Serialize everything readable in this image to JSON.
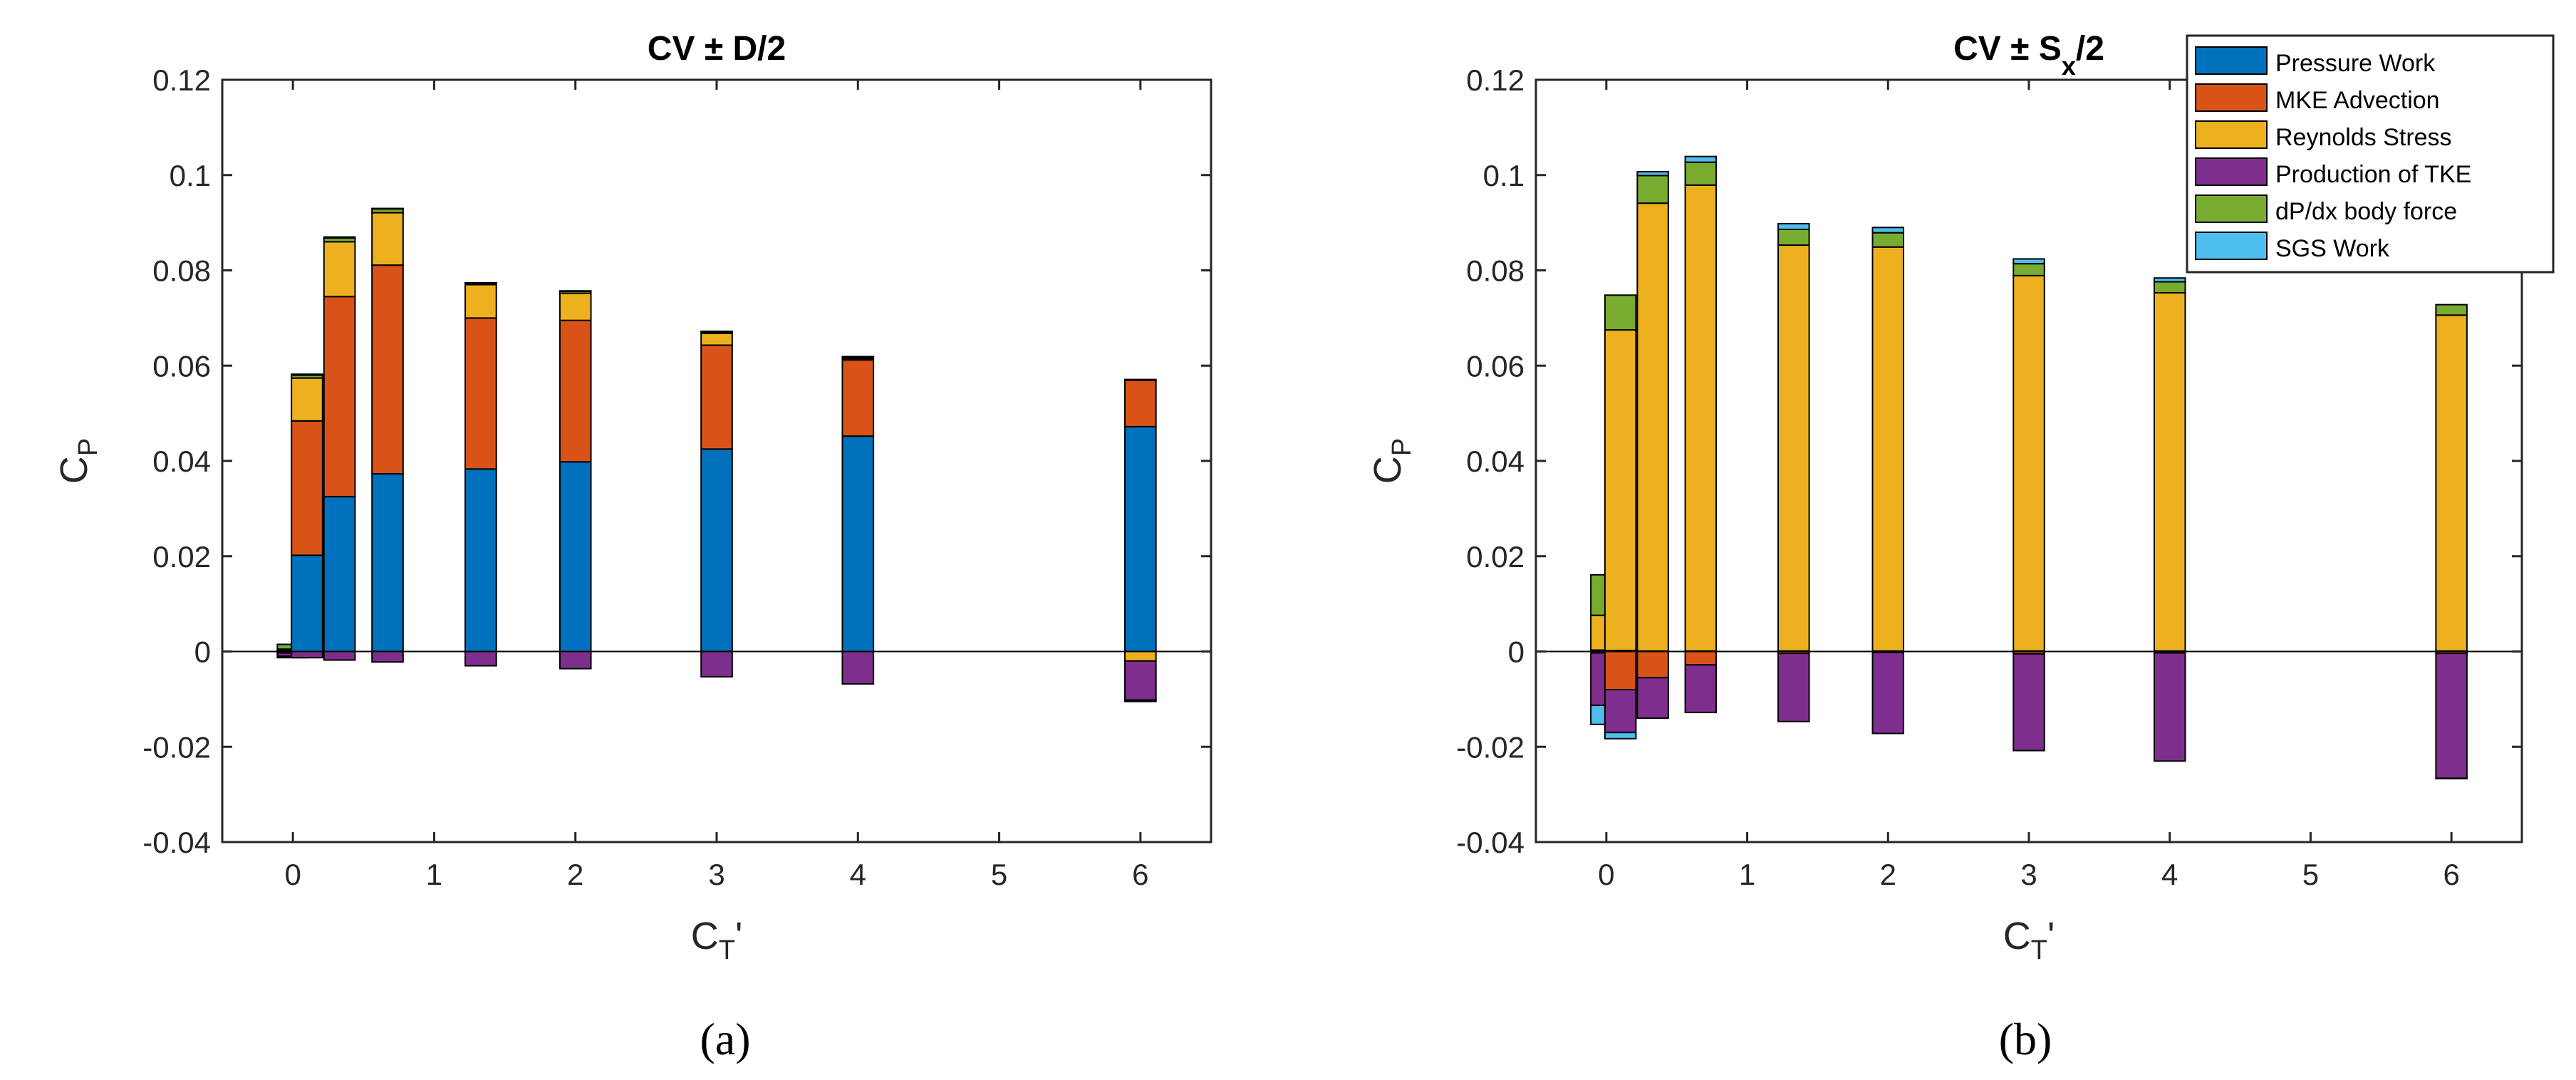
{
  "figure": {
    "captions": [
      "(a)",
      "(b)"
    ]
  },
  "chart_data": [
    {
      "type": "bar",
      "stacking": "stacked",
      "panel": "a",
      "title": "CV ± D/2",
      "title_parts": {
        "prefix": "CV",
        "pm": "±",
        "body": "D/2",
        "sub": ""
      },
      "xlabel": "C_T'",
      "xlabel_parts": {
        "main": "C",
        "sub": "T",
        "suffix": "'"
      },
      "ylabel": "C_P",
      "ylabel_parts": {
        "main": "C",
        "sub": "P"
      },
      "xlim": [
        -0.5,
        6.5
      ],
      "ylim": [
        -0.04,
        0.12
      ],
      "xticks": [
        0,
        1,
        2,
        3,
        4,
        5,
        6
      ],
      "yticks": [
        -0.04,
        -0.02,
        0,
        0.02,
        0.04,
        0.06,
        0.08,
        0.1,
        0.12
      ],
      "ytick_labels": [
        "-0.04",
        "-0.02",
        "0",
        "0.02",
        "0.04",
        "0.06",
        "0.08",
        "0.1",
        "0.12"
      ],
      "zero_line": true,
      "grid": false,
      "legend": null,
      "categories": [
        "0",
        "0.1",
        "0.33",
        "0.67",
        "1.33",
        "2",
        "3",
        "4",
        "6"
      ],
      "x": [
        0,
        0.1,
        0.33,
        0.67,
        1.33,
        2,
        3,
        4,
        6
      ],
      "bar_width": 0.22,
      "series": [
        {
          "name": "Pressure Work",
          "values": [
            -0.0003,
            0.0202,
            0.0325,
            0.0373,
            0.0383,
            0.0398,
            0.0425,
            0.0452,
            0.0472
          ]
        },
        {
          "name": "MKE Advection",
          "values": [
            0.0002,
            0.0282,
            0.042,
            0.0438,
            0.0317,
            0.0297,
            0.0218,
            0.016,
            0.0097
          ]
        },
        {
          "name": "Reynolds Stress",
          "values": [
            0.0003,
            0.009,
            0.0115,
            0.011,
            0.007,
            0.0057,
            0.0025,
            0.0003,
            -0.002
          ]
        },
        {
          "name": "Production of TKE",
          "values": [
            -0.0007,
            -0.0013,
            -0.0018,
            -0.0022,
            -0.003,
            -0.0036,
            -0.0053,
            -0.0068,
            -0.0082
          ]
        },
        {
          "name": "dP/dx body force",
          "values": [
            0.001,
            0.0006,
            0.0008,
            0.0008,
            0.0003,
            0.0004,
            0.0003,
            0.0003,
            0.0002
          ]
        },
        {
          "name": "SGS Work",
          "values": [
            -0.0003,
            0.0002,
            0.0002,
            0.0001,
            0.0001,
            0.0001,
            0.0001,
            0.0001,
            -0.0003
          ]
        }
      ]
    },
    {
      "type": "bar",
      "stacking": "stacked",
      "panel": "b",
      "title": "CV ± S_x/2",
      "title_parts": {
        "prefix": "CV",
        "pm": "±",
        "body": "S",
        "sub": "x",
        "suffix": "/2"
      },
      "xlabel": "C_T'",
      "xlabel_parts": {
        "main": "C",
        "sub": "T",
        "suffix": "'"
      },
      "ylabel": "C_P",
      "ylabel_parts": {
        "main": "C",
        "sub": "P"
      },
      "xlim": [
        -0.5,
        6.5
      ],
      "ylim": [
        -0.04,
        0.12
      ],
      "xticks": [
        0,
        1,
        2,
        3,
        4,
        5,
        6
      ],
      "yticks": [
        -0.04,
        -0.02,
        0,
        0.02,
        0.04,
        0.06,
        0.08,
        0.1,
        0.12
      ],
      "ytick_labels": [
        "-0.04",
        "-0.02",
        "0",
        "0.02",
        "0.04",
        "0.06",
        "0.08",
        "0.1",
        "0.12"
      ],
      "zero_line": true,
      "grid": false,
      "legend": "top-right",
      "categories": [
        "0",
        "0.1",
        "0.33",
        "0.67",
        "1.33",
        "2",
        "3",
        "4",
        "6"
      ],
      "x": [
        0,
        0.1,
        0.33,
        0.67,
        1.33,
        2,
        3,
        4,
        6
      ],
      "bar_width": 0.22,
      "series": [
        {
          "name": "Pressure Work",
          "values": [
            0.0003,
            0.0002,
            0.0001,
            0.0001,
            0.0001,
            0.0001,
            0.0001,
            0.0001,
            0.0001
          ]
        },
        {
          "name": "MKE Advection",
          "values": [
            -0.0003,
            -0.008,
            -0.0055,
            -0.0028,
            -0.0004,
            -0.0002,
            -0.0005,
            -0.0003,
            -0.0004
          ]
        },
        {
          "name": "Reynolds Stress",
          "values": [
            0.0073,
            0.0673,
            0.094,
            0.0978,
            0.0852,
            0.0848,
            0.0788,
            0.0752,
            0.0705
          ]
        },
        {
          "name": "Production of TKE",
          "values": [
            -0.011,
            -0.009,
            -0.0085,
            -0.01,
            -0.0143,
            -0.017,
            -0.0203,
            -0.0227,
            -0.0262
          ]
        },
        {
          "name": "dP/dx body force",
          "values": [
            0.0085,
            0.0073,
            0.0058,
            0.0048,
            0.0033,
            0.003,
            0.0025,
            0.0023,
            0.0022
          ]
        },
        {
          "name": "SGS Work",
          "values": [
            -0.004,
            -0.0013,
            0.0008,
            0.0012,
            0.0012,
            0.0011,
            0.001,
            0.0008,
            -0.0001
          ]
        }
      ]
    }
  ],
  "legend_colors": {
    "Pressure Work": "#0072BD",
    "MKE Advection": "#D95319",
    "Reynolds Stress": "#EDB120",
    "Production of TKE": "#7E2F8E",
    "dP/dx body force": "#77AC30",
    "SGS Work": "#4DBEEE"
  }
}
